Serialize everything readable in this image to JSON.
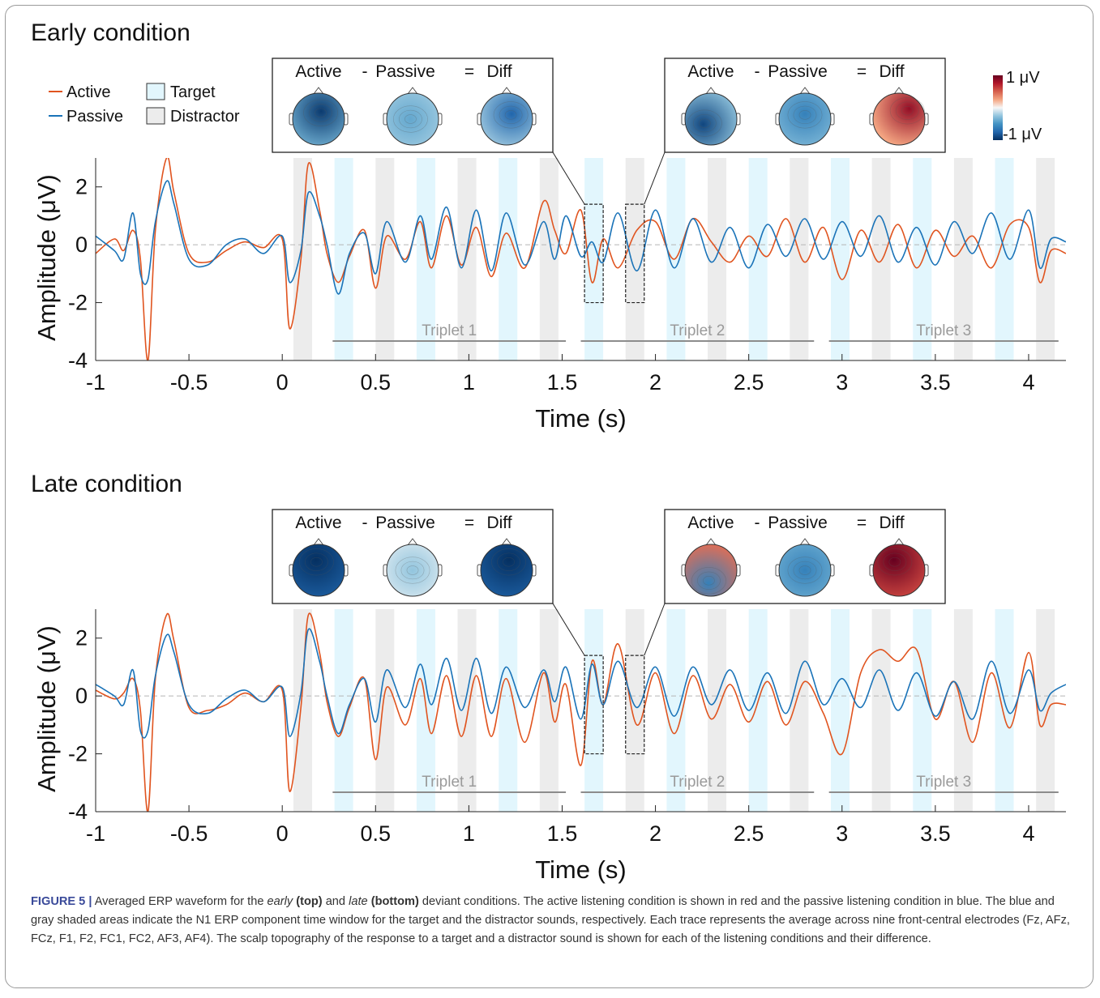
{
  "figure_label": "FIGURE 5 |",
  "caption": {
    "part1": " Averaged ERP waveform for the ",
    "em1": "early",
    "b1": "(top)",
    "part2": " and ",
    "em2": "late",
    "b2": "(bottom)",
    "part3": " deviant conditions. The active listening condition is shown in red and the passive listening condition in blue. The blue and gray shaded areas indicate the N1 ERP component time window for the target and the distractor sounds, respectively. Each trace represents the average across nine front-central electrodes (Fz, AFz, FCz, F1, F2, FC1, FC2, AF3, AF4). The scalp topography of the response to a target and a distractor sound is shown for each of the listening conditions and their difference."
  },
  "legend": {
    "active": "Active",
    "passive": "Passive",
    "target": "Target",
    "distractor": "Distractor"
  },
  "colorbar": {
    "max_label": "1 μV",
    "min_label": "-1 μV",
    "colors": [
      "#053061",
      "#2166ac",
      "#4393c3",
      "#92c5de",
      "#f7f7f7",
      "#f4a582",
      "#d6604d",
      "#b2182b",
      "#67001f"
    ]
  },
  "colors": {
    "active": "#e0541f",
    "passive": "#1a73b8",
    "target_shade": "#e2f6fd",
    "distractor_shade": "#ececec",
    "triplet_line": "#8c8c8c",
    "triplet_text": "#9a9a9a"
  },
  "topo_labels": [
    "Active",
    "-",
    "Passive",
    "=",
    "Diff"
  ],
  "chart_data": [
    {
      "type": "line",
      "title": "Early condition",
      "xlabel": "Time (s)",
      "ylabel": "Amplitude (μV)",
      "xlim": [
        -1,
        4.2
      ],
      "ylim": [
        -4,
        3
      ],
      "xticks": [
        "-1",
        "-0.5",
        "0",
        "0.5",
        "1",
        "1.5",
        "2",
        "2.5",
        "3",
        "3.5",
        "4"
      ],
      "yticks": [
        "-4",
        "-2",
        "0",
        "2"
      ],
      "triplets": [
        "Triplet 1",
        "Triplet 2",
        "Triplet 3"
      ],
      "target_windows": [
        [
          0.28,
          0.38
        ],
        [
          0.72,
          0.82
        ],
        [
          1.16,
          1.26
        ],
        [
          1.62,
          1.72
        ],
        [
          2.06,
          2.16
        ],
        [
          2.5,
          2.6
        ],
        [
          2.94,
          3.04
        ],
        [
          3.38,
          3.48
        ],
        [
          3.82,
          3.92
        ]
      ],
      "distractor_windows": [
        [
          0.06,
          0.16
        ],
        [
          0.5,
          0.6
        ],
        [
          0.94,
          1.04
        ],
        [
          1.38,
          1.48
        ],
        [
          1.84,
          1.94
        ],
        [
          2.28,
          2.38
        ],
        [
          2.72,
          2.82
        ],
        [
          3.16,
          3.26
        ],
        [
          3.6,
          3.7
        ],
        [
          4.04,
          4.14
        ]
      ],
      "highlight_windows": [
        [
          1.62,
          1.72
        ],
        [
          1.84,
          1.94
        ]
      ],
      "series": [
        {
          "name": "Active",
          "x": [
            -1,
            -0.9,
            -0.85,
            -0.8,
            -0.76,
            -0.72,
            -0.68,
            -0.62,
            -0.58,
            -0.5,
            -0.4,
            -0.3,
            -0.2,
            -0.1,
            0,
            0.04,
            0.1,
            0.14,
            0.2,
            0.24,
            0.3,
            0.36,
            0.44,
            0.5,
            0.56,
            0.66,
            0.74,
            0.8,
            0.88,
            0.96,
            1.04,
            1.12,
            1.2,
            1.3,
            1.4,
            1.46,
            1.52,
            1.6,
            1.66,
            1.72,
            1.8,
            1.9,
            2.0,
            2.1,
            2.2,
            2.3,
            2.4,
            2.5,
            2.6,
            2.7,
            2.8,
            2.9,
            3.0,
            3.1,
            3.2,
            3.3,
            3.4,
            3.5,
            3.6,
            3.7,
            3.8,
            3.9,
            4.0,
            4.06,
            4.12,
            4.2
          ],
          "values": [
            -0.3,
            0.2,
            -0.2,
            0.5,
            -0.5,
            -4.0,
            0.5,
            3.0,
            1.8,
            -0.3,
            -0.6,
            -0.2,
            0.1,
            -0.1,
            0.2,
            -2.9,
            -0.5,
            2.8,
            1.2,
            -0.3,
            -1.3,
            -0.4,
            0.5,
            -1.5,
            0.3,
            -0.5,
            0.8,
            -0.8,
            1.0,
            -0.7,
            0.6,
            -1.1,
            0.4,
            -0.8,
            1.5,
            0.5,
            -0.3,
            1.2,
            -1.3,
            0.2,
            -0.8,
            0.5,
            0.8,
            -0.5,
            0.9,
            0.1,
            -0.6,
            0.3,
            -0.4,
            0.9,
            -0.6,
            0.6,
            -1.2,
            0.5,
            -0.6,
            0.7,
            -0.8,
            0.5,
            -0.4,
            0.3,
            -0.8,
            0.7,
            0.6,
            -1.3,
            -0.2,
            -0.3
          ]
        },
        {
          "name": "Passive",
          "x": [
            -1,
            -0.9,
            -0.85,
            -0.8,
            -0.76,
            -0.72,
            -0.68,
            -0.62,
            -0.58,
            -0.5,
            -0.4,
            -0.3,
            -0.2,
            -0.1,
            0,
            0.04,
            0.1,
            0.14,
            0.2,
            0.24,
            0.3,
            0.36,
            0.44,
            0.5,
            0.56,
            0.66,
            0.74,
            0.8,
            0.88,
            0.96,
            1.04,
            1.12,
            1.2,
            1.3,
            1.4,
            1.46,
            1.52,
            1.6,
            1.66,
            1.72,
            1.8,
            1.9,
            2.0,
            2.1,
            2.2,
            2.3,
            2.4,
            2.5,
            2.6,
            2.7,
            2.8,
            2.9,
            3.0,
            3.1,
            3.2,
            3.3,
            3.4,
            3.5,
            3.6,
            3.7,
            3.8,
            3.9,
            4.0,
            4.06,
            4.12,
            4.2
          ],
          "values": [
            0.3,
            -0.2,
            -0.5,
            1.1,
            -1.0,
            -1.2,
            0.8,
            2.2,
            1.4,
            -0.5,
            -0.7,
            0.0,
            0.2,
            -0.3,
            0.3,
            -1.3,
            -0.2,
            1.8,
            1.0,
            0.0,
            -1.7,
            -0.3,
            0.4,
            -1.0,
            0.8,
            -0.6,
            1.0,
            -0.5,
            1.3,
            -0.8,
            1.2,
            -0.9,
            1.1,
            -0.7,
            0.8,
            -0.5,
            1.0,
            -0.4,
            0.1,
            -0.6,
            1.1,
            -0.9,
            1.2,
            -0.8,
            0.9,
            -0.6,
            0.6,
            -0.8,
            0.7,
            -0.4,
            0.9,
            -0.5,
            0.8,
            -0.4,
            1.0,
            -0.6,
            0.6,
            -0.7,
            0.8,
            -0.3,
            1.1,
            -0.5,
            1.2,
            -0.8,
            0.2,
            0.1
          ]
        }
      ]
    },
    {
      "type": "line",
      "title": "Late condition",
      "xlabel": "Time (s)",
      "ylabel": "Amplitude (μV)",
      "xlim": [
        -1,
        4.2
      ],
      "ylim": [
        -4,
        3
      ],
      "xticks": [
        "-1",
        "-0.5",
        "0",
        "0.5",
        "1",
        "1.5",
        "2",
        "2.5",
        "3",
        "3.5",
        "4"
      ],
      "yticks": [
        "-4",
        "-2",
        "0",
        "2"
      ],
      "triplets": [
        "Triplet 1",
        "Triplet 2",
        "Triplet 3"
      ],
      "target_windows": [
        [
          0.28,
          0.38
        ],
        [
          0.72,
          0.82
        ],
        [
          1.16,
          1.26
        ],
        [
          1.62,
          1.72
        ],
        [
          2.06,
          2.16
        ],
        [
          2.5,
          2.6
        ],
        [
          2.94,
          3.04
        ],
        [
          3.38,
          3.48
        ],
        [
          3.82,
          3.92
        ]
      ],
      "distractor_windows": [
        [
          0.06,
          0.16
        ],
        [
          0.5,
          0.6
        ],
        [
          0.94,
          1.04
        ],
        [
          1.38,
          1.48
        ],
        [
          1.84,
          1.94
        ],
        [
          2.28,
          2.38
        ],
        [
          2.72,
          2.82
        ],
        [
          3.16,
          3.26
        ],
        [
          3.6,
          3.7
        ],
        [
          4.04,
          4.14
        ]
      ],
      "highlight_windows": [
        [
          1.62,
          1.72
        ],
        [
          1.84,
          1.94
        ]
      ],
      "series": [
        {
          "name": "Active",
          "x": [
            -1,
            -0.9,
            -0.85,
            -0.8,
            -0.76,
            -0.72,
            -0.68,
            -0.62,
            -0.58,
            -0.5,
            -0.4,
            -0.3,
            -0.2,
            -0.1,
            0,
            0.04,
            0.1,
            0.14,
            0.2,
            0.24,
            0.3,
            0.36,
            0.44,
            0.5,
            0.56,
            0.66,
            0.74,
            0.8,
            0.88,
            0.96,
            1.04,
            1.12,
            1.2,
            1.3,
            1.4,
            1.46,
            1.52,
            1.6,
            1.66,
            1.72,
            1.8,
            1.9,
            2.0,
            2.1,
            2.2,
            2.3,
            2.4,
            2.5,
            2.6,
            2.7,
            2.8,
            2.9,
            3.0,
            3.1,
            3.2,
            3.3,
            3.4,
            3.5,
            3.6,
            3.7,
            3.8,
            3.9,
            4.0,
            4.06,
            4.12,
            4.2
          ],
          "values": [
            0.2,
            -0.1,
            0.1,
            0.6,
            -0.5,
            -4.0,
            0.6,
            2.8,
            1.9,
            -0.4,
            -0.5,
            -0.3,
            0.1,
            -0.2,
            0.2,
            -3.3,
            -0.4,
            2.8,
            1.5,
            -0.2,
            -1.4,
            -0.4,
            0.6,
            -2.2,
            0.3,
            -1.0,
            0.6,
            -1.3,
            0.7,
            -1.4,
            0.7,
            -1.4,
            0.6,
            -1.6,
            0.8,
            -0.9,
            0.4,
            -2.4,
            1.2,
            -0.3,
            1.8,
            -1.0,
            0.8,
            -1.3,
            0.7,
            -0.8,
            0.4,
            -0.9,
            0.5,
            -1.0,
            0.5,
            -0.6,
            -2.0,
            0.8,
            1.6,
            1.2,
            1.6,
            -0.8,
            0.5,
            -1.6,
            0.8,
            -1.1,
            1.5,
            -1.0,
            -0.3,
            -0.3
          ]
        },
        {
          "name": "Passive",
          "x": [
            -1,
            -0.9,
            -0.85,
            -0.8,
            -0.76,
            -0.72,
            -0.68,
            -0.62,
            -0.58,
            -0.5,
            -0.4,
            -0.3,
            -0.2,
            -0.1,
            0,
            0.04,
            0.1,
            0.14,
            0.2,
            0.24,
            0.3,
            0.36,
            0.44,
            0.5,
            0.56,
            0.66,
            0.74,
            0.8,
            0.88,
            0.96,
            1.04,
            1.12,
            1.2,
            1.3,
            1.4,
            1.46,
            1.52,
            1.6,
            1.66,
            1.72,
            1.8,
            1.9,
            2.0,
            2.1,
            2.2,
            2.3,
            2.4,
            2.5,
            2.6,
            2.7,
            2.8,
            2.9,
            3.0,
            3.1,
            3.2,
            3.3,
            3.4,
            3.5,
            3.6,
            3.7,
            3.8,
            3.9,
            4.0,
            4.06,
            4.12,
            4.2
          ],
          "values": [
            0.4,
            0.0,
            -0.3,
            0.9,
            -1.2,
            -1.2,
            0.7,
            2.1,
            1.5,
            -0.3,
            -0.6,
            -0.1,
            0.2,
            -0.2,
            0.3,
            -1.4,
            0.1,
            2.3,
            1.2,
            0.0,
            -1.3,
            -0.3,
            0.6,
            -0.9,
            0.9,
            -0.4,
            1.1,
            -0.3,
            1.3,
            -0.5,
            1.3,
            -0.6,
            1.0,
            -0.4,
            0.9,
            -0.2,
            1.0,
            -0.8,
            1.1,
            -0.3,
            1.2,
            -0.4,
            1.0,
            -0.7,
            1.0,
            -0.3,
            0.9,
            -0.5,
            0.8,
            -0.6,
            1.2,
            -0.3,
            0.6,
            -0.4,
            0.9,
            -0.5,
            0.8,
            -0.7,
            0.5,
            -0.8,
            1.2,
            -0.6,
            0.9,
            -0.5,
            0.1,
            0.4
          ]
        }
      ]
    }
  ]
}
